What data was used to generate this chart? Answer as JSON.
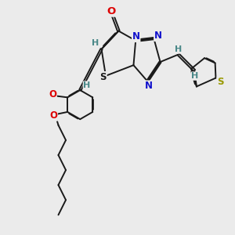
{
  "bg": "#ebebeb",
  "bc": "#1a1a1a",
  "bw": 1.4,
  "dbo": 0.038,
  "fs": 8.5,
  "fs_O": 9.5,
  "colors": {
    "O": "#dd0000",
    "N": "#1111cc",
    "S_thio": "#999900",
    "S_ring": "#1a1a1a",
    "H": "#4a8888",
    "C": "#1a1a1a"
  },
  "figsize": [
    3.0,
    3.0
  ],
  "dpi": 100,
  "xlim": [
    -1.0,
    9.5
  ],
  "ylim": [
    -6.5,
    4.5
  ]
}
